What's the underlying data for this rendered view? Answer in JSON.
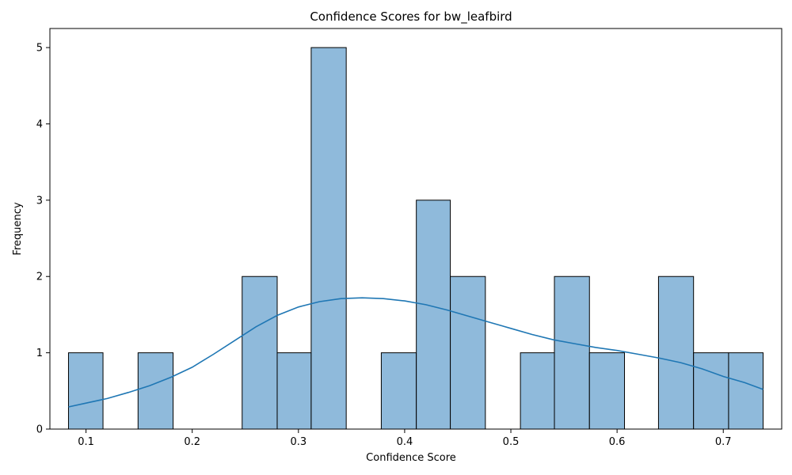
{
  "chart_data": {
    "type": "bar",
    "subtype": "histogram-with-kde",
    "title": "Confidence Scores for bw_leafbird",
    "xlabel": "Confidence Score",
    "ylabel": "Frequency",
    "xlim": [
      0.066,
      0.755
    ],
    "ylim": [
      0,
      5.25
    ],
    "xticks": [
      0.1,
      0.2,
      0.3,
      0.4,
      0.5,
      0.6,
      0.7
    ],
    "yticks": [
      0,
      1,
      2,
      3,
      4,
      5
    ],
    "bins": [
      {
        "x0": 0.0835,
        "x1": 0.116,
        "count": 1
      },
      {
        "x0": 0.116,
        "x1": 0.149,
        "count": 0
      },
      {
        "x0": 0.149,
        "x1": 0.182,
        "count": 1
      },
      {
        "x0": 0.182,
        "x1": 0.214,
        "count": 0
      },
      {
        "x0": 0.214,
        "x1": 0.247,
        "count": 0
      },
      {
        "x0": 0.247,
        "x1": 0.28,
        "count": 2
      },
      {
        "x0": 0.28,
        "x1": 0.312,
        "count": 1
      },
      {
        "x0": 0.312,
        "x1": 0.345,
        "count": 5
      },
      {
        "x0": 0.345,
        "x1": 0.378,
        "count": 0
      },
      {
        "x0": 0.378,
        "x1": 0.411,
        "count": 1
      },
      {
        "x0": 0.411,
        "x1": 0.443,
        "count": 3
      },
      {
        "x0": 0.443,
        "x1": 0.476,
        "count": 2
      },
      {
        "x0": 0.476,
        "x1": 0.509,
        "count": 0
      },
      {
        "x0": 0.509,
        "x1": 0.541,
        "count": 1
      },
      {
        "x0": 0.541,
        "x1": 0.574,
        "count": 2
      },
      {
        "x0": 0.574,
        "x1": 0.607,
        "count": 1
      },
      {
        "x0": 0.607,
        "x1": 0.639,
        "count": 0
      },
      {
        "x0": 0.639,
        "x1": 0.672,
        "count": 2
      },
      {
        "x0": 0.672,
        "x1": 0.705,
        "count": 1
      },
      {
        "x0": 0.705,
        "x1": 0.7375,
        "count": 1
      }
    ],
    "kde": {
      "x": [
        0.0835,
        0.1,
        0.12,
        0.14,
        0.16,
        0.18,
        0.2,
        0.22,
        0.24,
        0.26,
        0.28,
        0.3,
        0.32,
        0.34,
        0.36,
        0.38,
        0.4,
        0.42,
        0.44,
        0.46,
        0.48,
        0.5,
        0.52,
        0.54,
        0.56,
        0.58,
        0.6,
        0.62,
        0.64,
        0.66,
        0.68,
        0.7,
        0.72,
        0.7375
      ],
      "y": [
        0.29,
        0.34,
        0.4,
        0.48,
        0.57,
        0.68,
        0.81,
        0.98,
        1.16,
        1.34,
        1.49,
        1.6,
        1.67,
        1.71,
        1.72,
        1.71,
        1.68,
        1.63,
        1.56,
        1.48,
        1.4,
        1.32,
        1.24,
        1.17,
        1.12,
        1.07,
        1.03,
        0.98,
        0.93,
        0.87,
        0.79,
        0.69,
        0.61,
        0.52
      ]
    },
    "grid": false,
    "legend": "none",
    "colors": {
      "bar_fill": "#8fbadb",
      "bar_edge": "#000000",
      "kde_line": "#1f77b4"
    }
  }
}
